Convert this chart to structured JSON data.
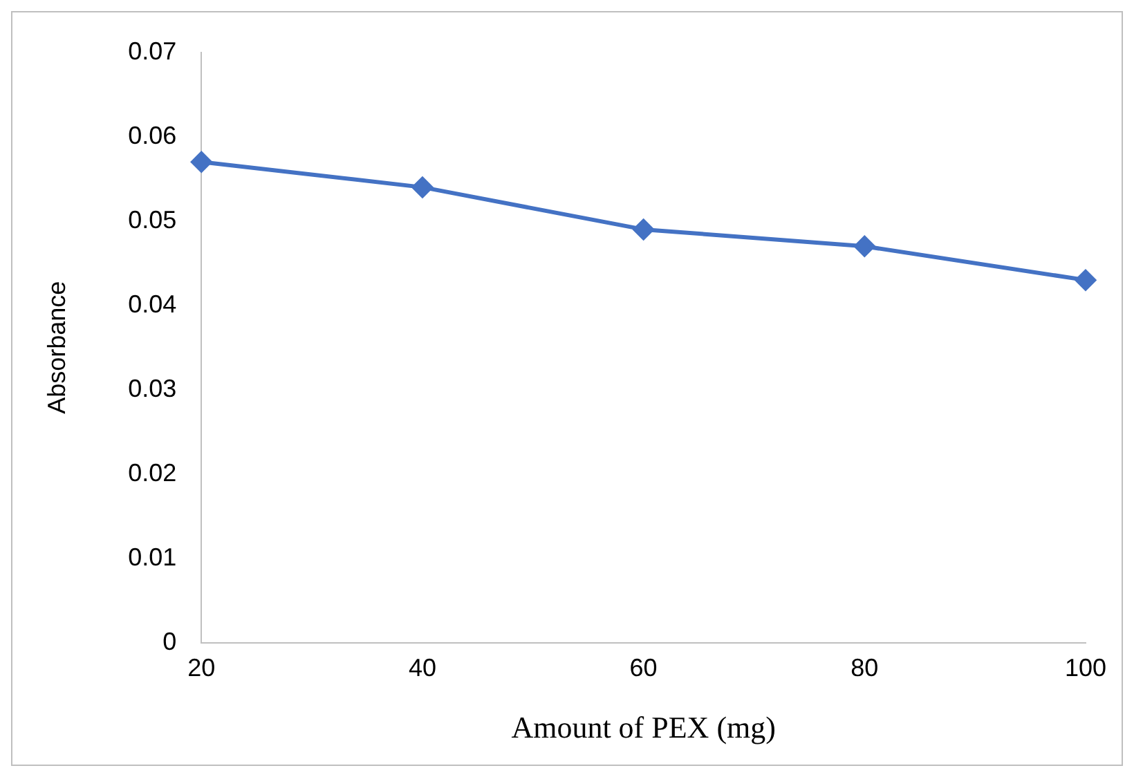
{
  "chart_data": {
    "type": "line",
    "xlabel": "Amount of PEX (mg)",
    "ylabel": "Absorbance",
    "x": [
      20,
      40,
      60,
      80,
      100
    ],
    "series": [
      {
        "color": "#4472c4",
        "values": [
          0.057,
          0.054,
          0.049,
          0.047,
          0.043
        ]
      }
    ],
    "xlim": [
      20,
      100
    ],
    "xticks": [
      20,
      40,
      60,
      80,
      100
    ],
    "ylim": [
      0,
      0.07
    ],
    "yticks": [
      0,
      0.01,
      0.02,
      0.03,
      0.04,
      0.05,
      0.06,
      0.07
    ],
    "grid": false,
    "legend": false,
    "marker": "diamond",
    "line_style": "solid"
  }
}
